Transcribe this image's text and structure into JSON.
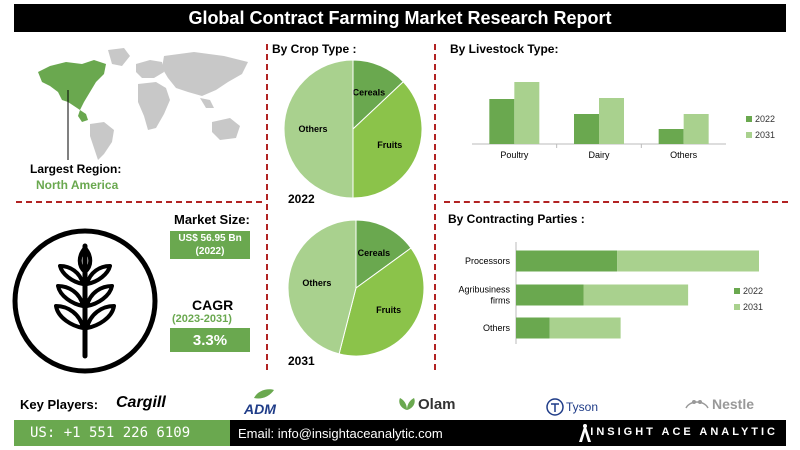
{
  "title": "Global Contract Farming Market Research Report",
  "region": {
    "label": "Largest Region:",
    "value": "North America"
  },
  "market_size": {
    "label": "Market Size:",
    "value": "US$ 56.95 Bn",
    "year": "(2022)"
  },
  "cagr": {
    "label": "CAGR",
    "period": "(2023-2031)",
    "value": "3.3%"
  },
  "colors": {
    "dark_green": "#6aa84f",
    "light_green": "#a9d18e",
    "mid_green": "#8bc34a",
    "divider": "#b22222"
  },
  "chart_data": [
    {
      "type": "pie",
      "title": "By  Crop Type :",
      "caption": "2022",
      "labels": [
        "Cereals",
        "Fruits",
        "Others"
      ],
      "values": [
        13,
        37,
        50
      ],
      "colors": [
        "#6aa84f",
        "#8bc34a",
        "#a9d18e"
      ]
    },
    {
      "type": "pie",
      "title": "",
      "caption": "2031",
      "labels": [
        "Cereals",
        "Fruits",
        "Others"
      ],
      "values": [
        15,
        39,
        46
      ],
      "colors": [
        "#6aa84f",
        "#8bc34a",
        "#a9d18e"
      ]
    },
    {
      "type": "bar",
      "title": "By Livestock Type:",
      "categories": [
        "Poultry",
        "Dairy",
        "Others"
      ],
      "series": [
        {
          "name": "2022",
          "values": [
            45,
            30,
            15
          ],
          "color": "#6aa84f"
        },
        {
          "name": "2031",
          "values": [
            62,
            46,
            30
          ],
          "color": "#a9d18e"
        }
      ],
      "ylim": [
        0,
        70
      ]
    },
    {
      "type": "bar",
      "orientation": "horizontal-stacked",
      "title": "By Contracting Parties :",
      "categories": [
        "Processors",
        "Agribusiness firms",
        "Others"
      ],
      "series": [
        {
          "name": "2022",
          "values": [
            30,
            20,
            10
          ],
          "color": "#6aa84f"
        },
        {
          "name": "2031",
          "values": [
            42,
            31,
            21
          ],
          "color": "#a9d18e"
        }
      ],
      "xlim": [
        0,
        80
      ]
    }
  ],
  "players": {
    "label": "Key Players:",
    "items": [
      "Cargill",
      "ADM",
      "Olam",
      "Tyson",
      "Nestle"
    ]
  },
  "footer": {
    "phone": "US: +1 551 226 6109",
    "email": "Email: info@insightaceanalytic.com",
    "brand": "INSIGHT ACE ANALYTIC"
  }
}
